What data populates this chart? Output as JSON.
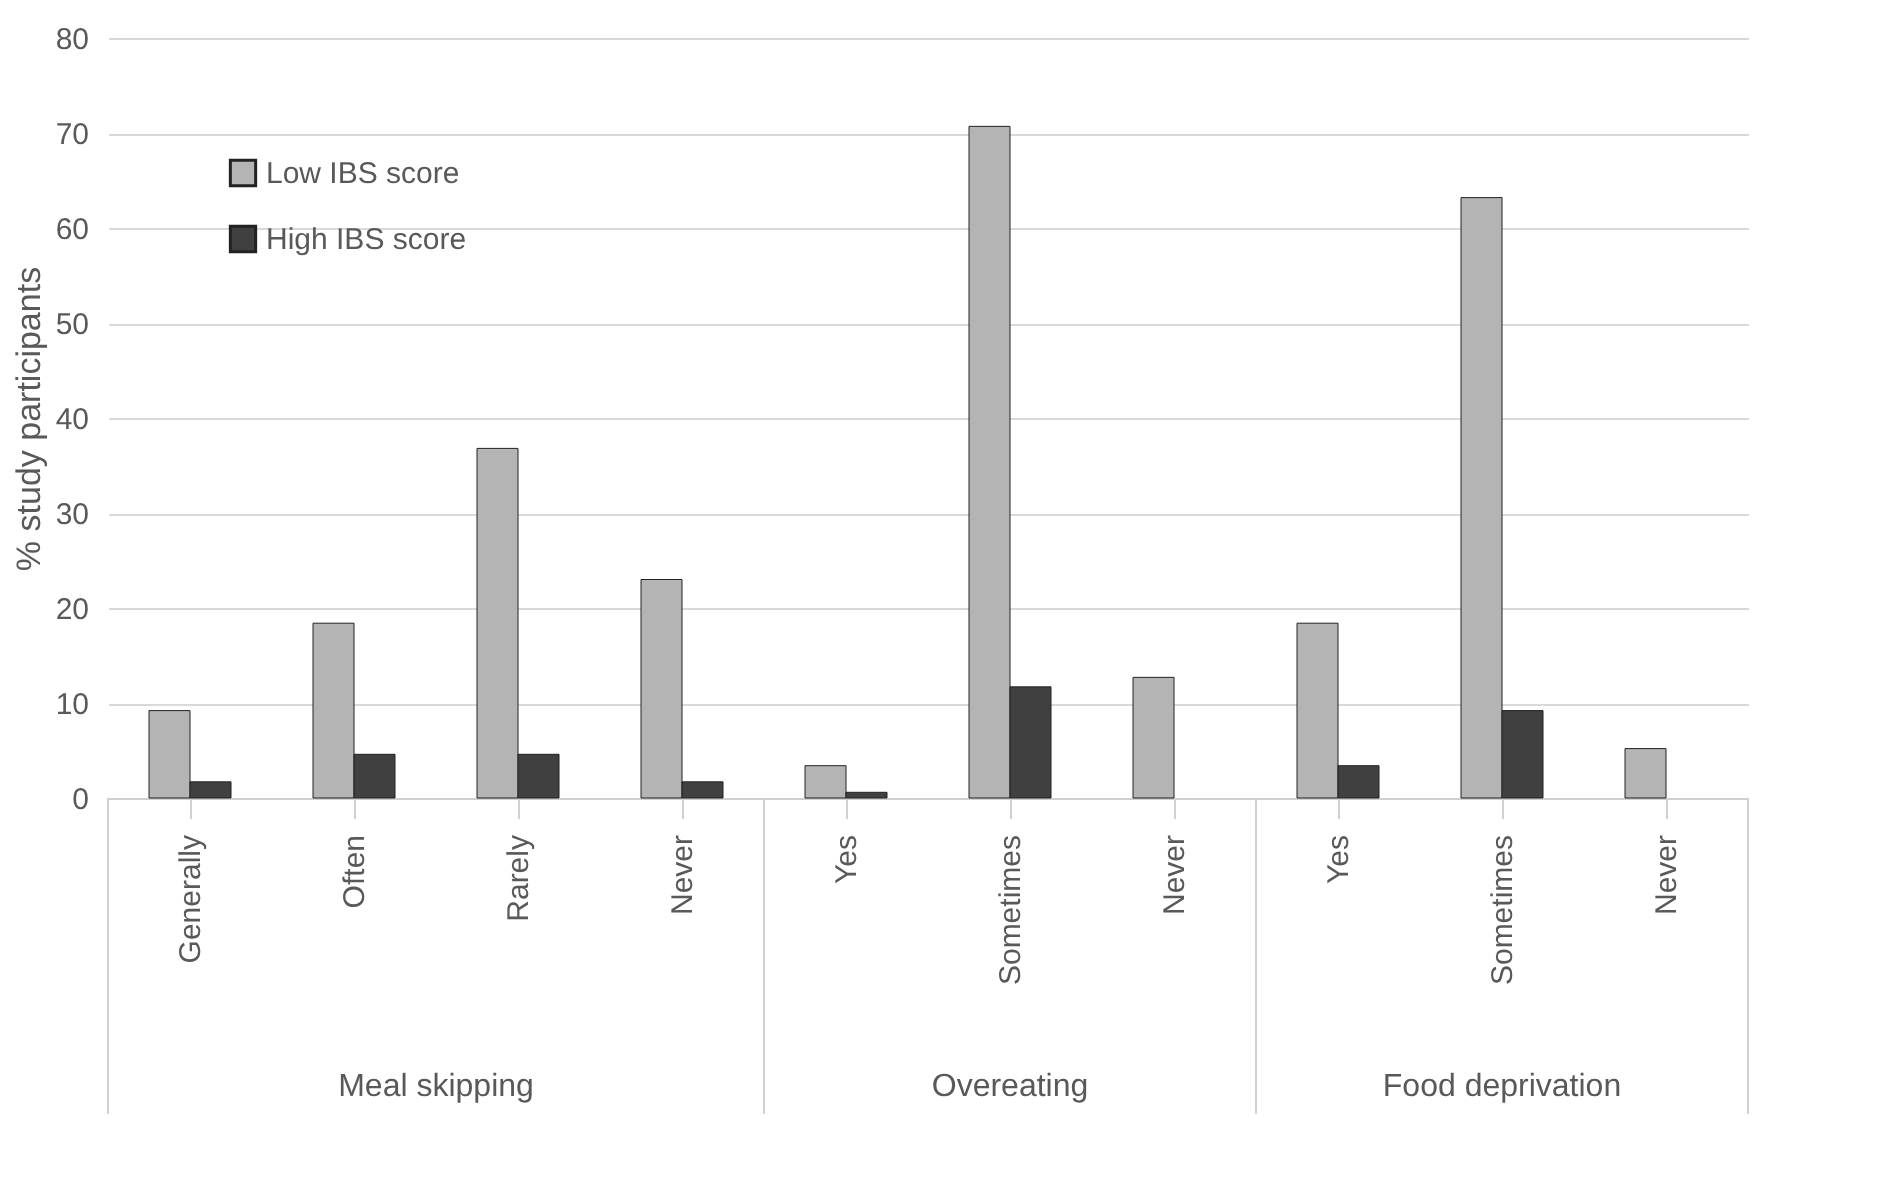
{
  "chart_data": {
    "type": "bar",
    "ylabel": "% study participants",
    "categories": [
      "Generally",
      "Often",
      "Rarely",
      "Never",
      "Yes",
      "Sometimes",
      "Never",
      "Yes",
      "Sometimes",
      "Never"
    ],
    "series": [
      {
        "name": "Low IBS score",
        "color": "#b4b4b4",
        "values": [
          9.2,
          18.4,
          36.8,
          23.0,
          3.4,
          70.7,
          12.7,
          18.4,
          63.2,
          5.2
        ]
      },
      {
        "name": "High IBS score",
        "color": "#404040",
        "values": [
          1.7,
          4.6,
          4.6,
          1.7,
          0.6,
          11.7,
          null,
          3.4,
          9.2,
          null
        ]
      }
    ],
    "annotations": [
      "Meal skipping",
      "Overeating",
      "Food deprivation"
    ],
    "ylim": [
      0,
      80
    ],
    "yticks": [
      0,
      10,
      20,
      30,
      40,
      50,
      60,
      70,
      80
    ],
    "grid": "y",
    "legend": "top left"
  }
}
